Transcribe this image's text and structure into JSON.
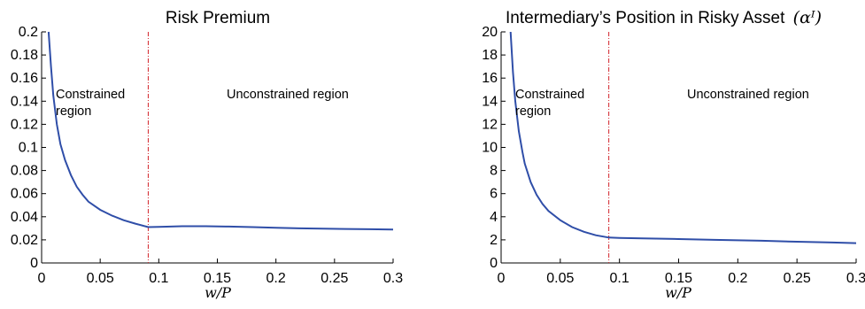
{
  "chart_data": [
    {
      "type": "line",
      "title": "Risk Premium",
      "xlabel": "w/P",
      "ylabel": "",
      "xlim": [
        0,
        0.3
      ],
      "ylim": [
        0,
        0.2
      ],
      "xticks": [
        "0",
        "0.05",
        "0.1",
        "0.15",
        "0.2",
        "0.25",
        "0.3"
      ],
      "yticks": [
        "0",
        "0.02",
        "0.04",
        "0.06",
        "0.08",
        "0.1",
        "0.12",
        "0.14",
        "0.16",
        "0.18",
        "0.2"
      ],
      "threshold_x": 0.091,
      "region_labels": {
        "constrained": [
          "Constrained",
          "region"
        ],
        "unconstrained": "Unconstrained region"
      },
      "series": [
        {
          "x": [
            0.006,
            0.008,
            0.01,
            0.013,
            0.016,
            0.02,
            0.025,
            0.03,
            0.035,
            0.04,
            0.05,
            0.06,
            0.07,
            0.08,
            0.091,
            0.1,
            0.12,
            0.14,
            0.16,
            0.18,
            0.2,
            0.22,
            0.24,
            0.26,
            0.28,
            0.3
          ],
          "y": [
            0.2,
            0.17,
            0.145,
            0.12,
            0.103,
            0.089,
            0.076,
            0.066,
            0.059,
            0.053,
            0.046,
            0.041,
            0.037,
            0.034,
            0.031,
            0.0312,
            0.0318,
            0.0318,
            0.0315,
            0.031,
            0.0305,
            0.03,
            0.0297,
            0.0294,
            0.0292,
            0.029
          ]
        }
      ],
      "grid": false
    },
    {
      "type": "line",
      "title": "Intermediary’s Position in Risky Asset",
      "title_math": "(αᴵ)",
      "xlabel": "w/P",
      "ylabel": "",
      "xlim": [
        0,
        0.3
      ],
      "ylim": [
        0,
        20
      ],
      "xticks": [
        "0",
        "0.05",
        "0.1",
        "0.15",
        "0.2",
        "0.25",
        "0.3"
      ],
      "yticks": [
        "0",
        "2",
        "4",
        "6",
        "8",
        "10",
        "12",
        "14",
        "16",
        "18",
        "20"
      ],
      "threshold_x": 0.091,
      "region_labels": {
        "constrained": [
          "Constrained",
          "region"
        ],
        "unconstrained": "Unconstrained region"
      },
      "series": [
        {
          "x": [
            0.008,
            0.01,
            0.012,
            0.015,
            0.018,
            0.02,
            0.025,
            0.03,
            0.035,
            0.04,
            0.05,
            0.06,
            0.07,
            0.08,
            0.091,
            0.1,
            0.12,
            0.15,
            0.18,
            0.2,
            0.22,
            0.25,
            0.28,
            0.3
          ],
          "y": [
            20,
            16.5,
            14,
            11.4,
            9.6,
            8.6,
            7,
            5.9,
            5.1,
            4.5,
            3.7,
            3.1,
            2.7,
            2.4,
            2.2,
            2.17,
            2.13,
            2.07,
            2.0,
            1.96,
            1.92,
            1.84,
            1.77,
            1.72
          ]
        }
      ],
      "grid": false
    }
  ]
}
